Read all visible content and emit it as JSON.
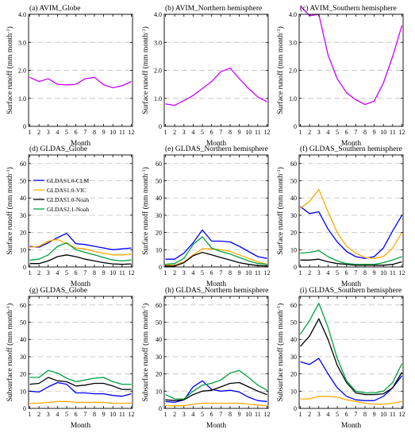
{
  "figure": {
    "y_tick_labels_top": [
      "0",
      "1.0",
      "2.0",
      "3.0",
      "4.0"
    ],
    "y_tick_labels": [
      "0",
      "10",
      "20",
      "30",
      "40",
      "50",
      "60"
    ],
    "x_tick_labels": [
      "1",
      "2",
      "3",
      "4",
      "5",
      "6",
      "7",
      "8",
      "9",
      "10",
      "11",
      "12"
    ],
    "x_axis_title": "Month",
    "y_axis_titles": {
      "surface": "Surface runoff (mm month",
      "subsurface": "Subsurface runoff (mm month",
      "superscript": "-1",
      "close": ")"
    }
  },
  "chart_data": [
    {
      "panel": "a",
      "type": "line",
      "title": "(a) AVIM_Globe",
      "x": [
        1,
        2,
        3,
        4,
        5,
        6,
        7,
        8,
        9,
        10,
        11,
        12
      ],
      "ylim": [
        0,
        4
      ],
      "yticks": [
        0,
        1,
        2,
        3,
        4
      ],
      "grid": true,
      "series": [
        {
          "name": "AVIM",
          "color": "#cc00ff",
          "values": [
            1.75,
            1.6,
            1.7,
            1.5,
            1.48,
            1.5,
            1.7,
            1.75,
            1.48,
            1.38,
            1.45,
            1.6
          ]
        }
      ]
    },
    {
      "panel": "b",
      "type": "line",
      "title": "(b) AVIM_Northern hemisphere",
      "x": [
        1,
        2,
        3,
        4,
        5,
        6,
        7,
        8,
        9,
        10,
        11,
        12
      ],
      "ylim": [
        0,
        4
      ],
      "yticks": [
        0,
        1,
        2,
        3,
        4
      ],
      "grid": true,
      "series": [
        {
          "name": "AVIM",
          "color": "#cc00ff",
          "values": [
            0.8,
            0.75,
            0.92,
            1.1,
            1.35,
            1.6,
            1.95,
            2.08,
            1.7,
            1.35,
            1.05,
            0.88
          ]
        }
      ]
    },
    {
      "panel": "c",
      "type": "line",
      "title": "(c) AVIM_Southern hemisphere",
      "x": [
        1,
        2,
        3,
        4,
        5,
        6,
        7,
        8,
        9,
        10,
        11,
        12
      ],
      "ylim": [
        0,
        4
      ],
      "yticks": [
        0,
        1,
        2,
        3,
        4
      ],
      "grid": true,
      "series": [
        {
          "name": "AVIM",
          "color": "#cc00ff",
          "values": [
            4.3,
            3.95,
            4.0,
            2.55,
            1.7,
            1.2,
            0.95,
            0.78,
            0.9,
            1.55,
            2.5,
            3.6
          ]
        }
      ]
    },
    {
      "panel": "d",
      "type": "line",
      "title": "(d) GLDAS_Globe",
      "x": [
        1,
        2,
        3,
        4,
        5,
        6,
        7,
        8,
        9,
        10,
        11,
        12
      ],
      "ylim": [
        0,
        65
      ],
      "yticks": [
        0,
        10,
        20,
        30,
        40,
        50,
        60
      ],
      "grid": true,
      "legend": {
        "placement": "top-left"
      },
      "series": [
        {
          "name": "GLDAS1.0-CLM",
          "color": "#0000ff",
          "values": [
            12,
            11.5,
            14,
            17,
            19.5,
            13.5,
            13,
            12,
            11,
            10,
            10.5,
            11
          ]
        },
        {
          "name": "GLDAS1.0-VIC",
          "color": "#ffaa00",
          "values": [
            11.5,
            12,
            15,
            16,
            13.5,
            11,
            10.5,
            9,
            8,
            7,
            7,
            7.5
          ]
        },
        {
          "name": "GLDAS1.0-Noah",
          "color": "#000000",
          "values": [
            2,
            2,
            3.5,
            6,
            7,
            6,
            4.5,
            3.5,
            2.5,
            1.8,
            1.5,
            1.8
          ]
        },
        {
          "name": "GLDAS2.1-Noah",
          "color": "#00a040",
          "values": [
            4,
            4.5,
            7,
            12,
            14,
            10,
            8.5,
            7,
            5.5,
            4,
            3.5,
            4
          ]
        }
      ]
    },
    {
      "panel": "e",
      "type": "line",
      "title": "(e) GLDAS_Northern hemisphere",
      "x": [
        1,
        2,
        3,
        4,
        5,
        6,
        7,
        8,
        9,
        10,
        11,
        12
      ],
      "ylim": [
        0,
        65
      ],
      "yticks": [
        0,
        10,
        20,
        30,
        40,
        50,
        60
      ],
      "grid": true,
      "series": [
        {
          "name": "GLDAS1.0-CLM",
          "color": "#0000ff",
          "values": [
            4.5,
            4.5,
            8,
            14,
            21.5,
            15,
            15,
            14.5,
            12,
            9,
            6,
            5
          ]
        },
        {
          "name": "GLDAS1.0-VIC",
          "color": "#ffaa00",
          "values": [
            1,
            1,
            3,
            7,
            10.5,
            10.5,
            10,
            9,
            7,
            5,
            3,
            1.5
          ]
        },
        {
          "name": "GLDAS1.0-Noah",
          "color": "#000000",
          "values": [
            0.5,
            0.5,
            2.5,
            6.5,
            8.5,
            7,
            5.5,
            4,
            2.5,
            1.5,
            0.8,
            0.6
          ]
        },
        {
          "name": "GLDAS2.1-Noah",
          "color": "#00a040",
          "values": [
            1.5,
            2,
            5,
            13,
            17.5,
            11,
            9,
            7.5,
            5.5,
            3.5,
            2,
            1.5
          ]
        }
      ]
    },
    {
      "panel": "f",
      "type": "line",
      "title": "(f) GLDAS_Southern hemisphere",
      "x": [
        1,
        2,
        3,
        4,
        5,
        6,
        7,
        8,
        9,
        10,
        11,
        12
      ],
      "ylim": [
        0,
        65
      ],
      "yticks": [
        0,
        10,
        20,
        30,
        40,
        50,
        60
      ],
      "grid": true,
      "series": [
        {
          "name": "GLDAS1.0-CLM",
          "color": "#0000ff",
          "values": [
            35,
            31,
            32,
            22,
            14.5,
            9,
            6,
            5,
            6,
            11,
            21,
            30
          ]
        },
        {
          "name": "GLDAS1.0-VIC",
          "color": "#ffaa00",
          "values": [
            34,
            38,
            45,
            32,
            20,
            12,
            8,
            5.5,
            5,
            6,
            11,
            20
          ]
        },
        {
          "name": "GLDAS1.0-Noah",
          "color": "#000000",
          "values": [
            4,
            4,
            4.5,
            3,
            2,
            1.5,
            1,
            1,
            1,
            1,
            1.5,
            3
          ]
        },
        {
          "name": "GLDAS2.1-Noah",
          "color": "#00a040",
          "values": [
            8,
            8.5,
            9.5,
            6,
            3.5,
            2,
            1.5,
            1.5,
            1.5,
            2.5,
            4,
            6
          ]
        }
      ]
    },
    {
      "panel": "g",
      "type": "line",
      "title": "(g) GLDAS_Globe",
      "x": [
        1,
        2,
        3,
        4,
        5,
        6,
        7,
        8,
        9,
        10,
        11,
        12
      ],
      "ylim": [
        0,
        65
      ],
      "yticks": [
        0,
        10,
        20,
        30,
        40,
        50,
        60
      ],
      "grid": true,
      "series": [
        {
          "name": "GLDAS1.0-CLM",
          "color": "#0000ff",
          "values": [
            10,
            9.5,
            12.5,
            15,
            14,
            9,
            9,
            8.5,
            8.5,
            7.5,
            7,
            8.5
          ]
        },
        {
          "name": "GLDAS1.0-VIC",
          "color": "#ffaa00",
          "values": [
            3,
            3,
            3.5,
            4,
            4,
            3.5,
            3.5,
            3.5,
            3.5,
            3,
            3,
            3
          ]
        },
        {
          "name": "GLDAS1.0-Noah",
          "color": "#000000",
          "values": [
            14,
            14.5,
            18,
            16,
            15.5,
            13,
            13.5,
            14.5,
            14.5,
            13,
            11,
            11
          ]
        },
        {
          "name": "GLDAS2.1-Noah",
          "color": "#00a040",
          "values": [
            18,
            18,
            22,
            20.5,
            17.5,
            15.5,
            16.5,
            17.5,
            18,
            15.5,
            14,
            14
          ]
        }
      ]
    },
    {
      "panel": "h",
      "type": "line",
      "title": "(h) GLDAS_Northern hemisphere",
      "x": [
        1,
        2,
        3,
        4,
        5,
        6,
        7,
        8,
        9,
        10,
        11,
        12
      ],
      "ylim": [
        0,
        65
      ],
      "yticks": [
        0,
        10,
        20,
        30,
        40,
        50,
        60
      ],
      "grid": true,
      "series": [
        {
          "name": "GLDAS1.0-CLM",
          "color": "#0000ff",
          "values": [
            4,
            3.5,
            5,
            12.5,
            16,
            11,
            10,
            10.5,
            9.5,
            6.5,
            4.5,
            4
          ]
        },
        {
          "name": "GLDAS1.0-VIC",
          "color": "#ffaa00",
          "values": [
            1.5,
            1.5,
            1.5,
            2.5,
            3,
            3,
            3,
            3,
            3,
            2.5,
            2,
            1.5
          ]
        },
        {
          "name": "GLDAS1.0-Noah",
          "color": "#000000",
          "values": [
            5,
            4.5,
            5,
            8,
            10,
            10.5,
            12.5,
            14.5,
            15,
            12.5,
            10,
            8
          ]
        },
        {
          "name": "GLDAS2.1-Noah",
          "color": "#00a040",
          "values": [
            8,
            5.5,
            5.5,
            10,
            13.5,
            14.5,
            16.5,
            20.5,
            22,
            18,
            13.5,
            10.5
          ]
        }
      ]
    },
    {
      "panel": "i",
      "type": "line",
      "title": "(i) GLDAS_Southern hemisphere",
      "x": [
        1,
        2,
        3,
        4,
        5,
        6,
        7,
        8,
        9,
        10,
        11,
        12
      ],
      "ylim": [
        0,
        65
      ],
      "yticks": [
        0,
        10,
        20,
        30,
        40,
        50,
        60
      ],
      "grid": true,
      "series": [
        {
          "name": "GLDAS1.0-CLM",
          "color": "#0000ff",
          "values": [
            27,
            25.5,
            29,
            20,
            12,
            7,
            5,
            4.5,
            4.5,
            7,
            12,
            19
          ]
        },
        {
          "name": "GLDAS1.0-VIC",
          "color": "#ffaa00",
          "values": [
            5.5,
            5.5,
            7,
            7,
            6.5,
            5,
            4,
            3,
            2.5,
            2.5,
            3,
            4
          ]
        },
        {
          "name": "GLDAS1.0-Noah",
          "color": "#000000",
          "values": [
            36,
            42,
            52,
            40,
            25,
            15,
            9,
            8,
            8,
            8.5,
            12,
            21
          ]
        },
        {
          "name": "GLDAS2.1-Noah",
          "color": "#00a040",
          "values": [
            43,
            51,
            61,
            47,
            29,
            16,
            10,
            9,
            9,
            10,
            15,
            26
          ]
        }
      ]
    }
  ]
}
